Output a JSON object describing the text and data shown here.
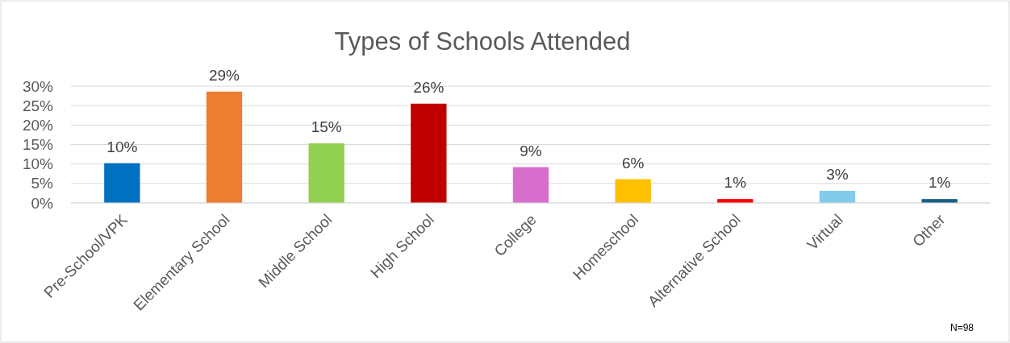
{
  "chart_data": {
    "type": "bar",
    "title": "Types of Schools Attended",
    "categories": [
      "Pre-School/VPK",
      "Elementary School",
      "Middle School",
      "High School",
      "College",
      "Homeschool",
      "Alternative School",
      "Virtual",
      "Other"
    ],
    "values": [
      10.2,
      28.6,
      15.3,
      25.5,
      9.2,
      6.1,
      1.0,
      3.1,
      1.0
    ],
    "value_labels": [
      "10%",
      "29%",
      "15%",
      "26%",
      "9%",
      "6%",
      "1%",
      "3%",
      "1%"
    ],
    "colors": [
      "#0070c0",
      "#ed7d31",
      "#92d050",
      "#c00000",
      "#d86ecc",
      "#ffc000",
      "#ff0000",
      "#83cbeb",
      "#156082"
    ],
    "ylim": [
      0,
      30
    ],
    "yticks": [
      {
        "value": 0,
        "label": "0%"
      },
      {
        "value": 5,
        "label": "5%"
      },
      {
        "value": 10,
        "label": "10%"
      },
      {
        "value": 15,
        "label": "15%"
      },
      {
        "value": 20,
        "label": "20%"
      },
      {
        "value": 25,
        "label": "25%"
      },
      {
        "value": 30,
        "label": "30%"
      }
    ],
    "grid": "y",
    "annotations": [
      "N=98"
    ]
  }
}
